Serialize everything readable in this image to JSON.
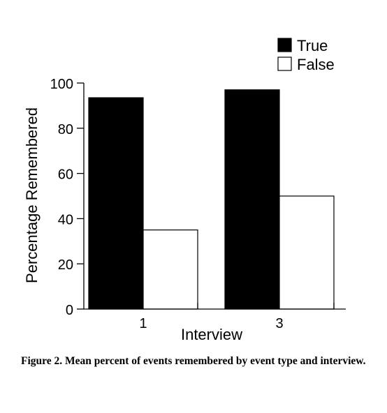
{
  "chart_data": {
    "type": "bar",
    "categories": [
      "1",
      "3"
    ],
    "series": [
      {
        "name": "True",
        "values": [
          93.5,
          97
        ],
        "color": "#000000"
      },
      {
        "name": "False",
        "values": [
          35,
          50
        ],
        "color": "#ffffff"
      }
    ],
    "xlabel": "Interview",
    "ylabel": "Percentage Remembered",
    "ylim": [
      0,
      100
    ],
    "yticks": [
      "0",
      "20",
      "40",
      "60",
      "80",
      "100"
    ],
    "grid": false,
    "legend": "top-right"
  },
  "caption": "Figure 2. Mean percent of events remembered by event type and interview."
}
